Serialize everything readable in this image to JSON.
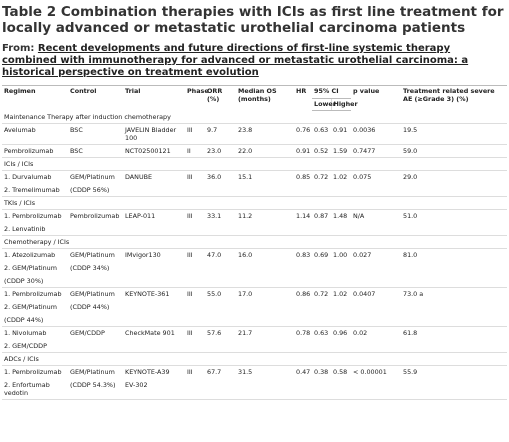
{
  "header": {
    "title": "Table 2 Combination therapies with ICIs as first line treatment for locally advanced or metastatic urothelial carcinoma patients",
    "from_label": "From:",
    "source": "Recent developments and future directions of first-line systemic therapy combined with immunotherapy for advanced or metastatic urothelial carcinoma: a historical perspective on treatment evolution"
  },
  "table": {
    "columns": [
      "Regimen",
      "Control",
      "Trial",
      "Phase",
      "ORR (%)",
      "Median OS (months)",
      "HR",
      "95% CI",
      "p value",
      "Treatment related severe AE (≥Grade 3) (%)"
    ],
    "ci_sub": [
      "Lower",
      "Higher"
    ],
    "rows": [
      {
        "section": "Maintenance Therapy after induction chemotherapy"
      },
      {
        "cells": [
          [
            "Avelumab"
          ],
          [
            "BSC"
          ],
          [
            "JAVELIN Bladder 100"
          ],
          [
            "III"
          ],
          [
            "9.7"
          ],
          [
            "23.8"
          ],
          [
            "0.76"
          ],
          [
            "0.63"
          ],
          [
            "0.91"
          ],
          [
            "0.0036"
          ],
          [
            "19.5"
          ]
        ]
      },
      {
        "cells": [
          [
            "Pembrolizumab"
          ],
          [
            "BSC"
          ],
          [
            "NCT02500121"
          ],
          [
            "II"
          ],
          [
            "23.0"
          ],
          [
            "22.0"
          ],
          [
            "0.91"
          ],
          [
            "0.52"
          ],
          [
            "1.59"
          ],
          [
            "0.7477"
          ],
          [
            "59.0"
          ]
        ]
      },
      {
        "section": "ICIs / ICIs"
      },
      {
        "cells": [
          [
            "1. Durvalumab",
            "2. Tremelimumab"
          ],
          [
            "GEM/Platinum",
            "(CDDP 56%)"
          ],
          [
            "DANUBE"
          ],
          [
            "III"
          ],
          [
            "36.0"
          ],
          [
            "15.1"
          ],
          [
            "0.85"
          ],
          [
            "0.72"
          ],
          [
            "1.02"
          ],
          [
            "0.075"
          ],
          [
            "29.0"
          ]
        ]
      },
      {
        "section": "TKIs / ICIs"
      },
      {
        "cells": [
          [
            "1. Pembrolizumab",
            "2. Lenvatinib"
          ],
          [
            "Pembrolizumab"
          ],
          [
            "LEAP-011"
          ],
          [
            "III"
          ],
          [
            "33.1"
          ],
          [
            "11.2"
          ],
          [
            "1.14"
          ],
          [
            "0.87"
          ],
          [
            "1.48"
          ],
          [
            "N/A"
          ],
          [
            "51.0"
          ]
        ]
      },
      {
        "section": "Chemotherapy / ICIs"
      },
      {
        "cells": [
          [
            "1. Atezolizumab",
            "2. GEM/Platinum",
            "(CDDP 30%)"
          ],
          [
            "GEM/Platinum",
            "(CDDP 34%)"
          ],
          [
            "IMvigor130"
          ],
          [
            "III"
          ],
          [
            "47.0"
          ],
          [
            "16.0"
          ],
          [
            "0.83"
          ],
          [
            "0.69"
          ],
          [
            "1.00"
          ],
          [
            "0.027"
          ],
          [
            "81.0"
          ]
        ]
      },
      {
        "cells": [
          [
            "1. Pembrolizumab",
            "2. GEM/Platinum",
            "(CDDP 44%)"
          ],
          [
            "GEM/Platinum",
            "(CDDP 44%)"
          ],
          [
            "KEYNOTE-361"
          ],
          [
            "III"
          ],
          [
            "55.0"
          ],
          [
            "17.0"
          ],
          [
            "0.86"
          ],
          [
            "0.72"
          ],
          [
            "1.02"
          ],
          [
            "0.0407"
          ],
          [
            "73.0 a"
          ]
        ]
      },
      {
        "cells": [
          [
            "1. Nivolumab",
            "2. GEM/CDDP"
          ],
          [
            "GEM/CDDP"
          ],
          [
            "CheckMate 901"
          ],
          [
            "III"
          ],
          [
            "57.6"
          ],
          [
            "21.7"
          ],
          [
            "0.78"
          ],
          [
            "0.63"
          ],
          [
            "0.96"
          ],
          [
            "0.02"
          ],
          [
            "61.8"
          ]
        ]
      },
      {
        "section": "ADCs / ICIs"
      },
      {
        "cells": [
          [
            "1. Pembrolizumab",
            "2. Enfortumab vedotin"
          ],
          [
            "GEM/Platinum",
            "(CDDP 54.3%)"
          ],
          [
            "KEYNOTE-A39",
            "EV-302"
          ],
          [
            "III"
          ],
          [
            "67.7"
          ],
          [
            "31.5"
          ],
          [
            "0.47"
          ],
          [
            "0.38"
          ],
          [
            "0.58"
          ],
          [
            "< 0.00001"
          ],
          [
            "55.9"
          ]
        ]
      }
    ]
  }
}
